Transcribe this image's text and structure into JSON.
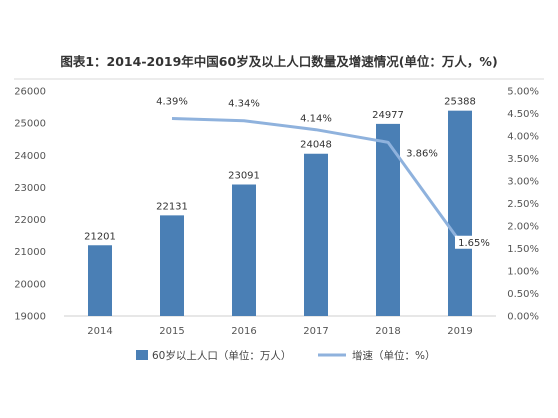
{
  "chart_data": {
    "type": "bar",
    "title": "图表1：2014-2019年中国60岁及以上人口数量及增速情况(单位：万人，%)",
    "categories": [
      "2014",
      "2015",
      "2016",
      "2017",
      "2018",
      "2019"
    ],
    "series": [
      {
        "name": "60岁以上人口（单位：万人）",
        "type": "bar",
        "axis": "left",
        "color": "#4a7fb5",
        "values": [
          21201,
          22131,
          23091,
          24048,
          24977,
          25388
        ],
        "labels": [
          "21201",
          "22131",
          "23091",
          "24048",
          "24977",
          "25388"
        ]
      },
      {
        "name": "增速（单位：%）",
        "type": "line",
        "axis": "right",
        "color": "#8fb2dd",
        "values": [
          null,
          4.39,
          4.34,
          4.14,
          3.86,
          1.65
        ],
        "labels": [
          "",
          "4.39%",
          "4.34%",
          "4.14%",
          "3.86%",
          "1.65%"
        ]
      }
    ],
    "y_left": {
      "min": 19000,
      "max": 26000,
      "ticks": [
        "19000",
        "20000",
        "21000",
        "22000",
        "23000",
        "24000",
        "25000",
        "26000"
      ]
    },
    "y_right": {
      "min": 0,
      "max": 5,
      "ticks": [
        "0.00%",
        "0.50%",
        "1.00%",
        "1.50%",
        "2.00%",
        "2.50%",
        "3.00%",
        "3.50%",
        "4.00%",
        "4.50%",
        "5.00%"
      ]
    },
    "grid": false,
    "legend_position": "bottom"
  }
}
